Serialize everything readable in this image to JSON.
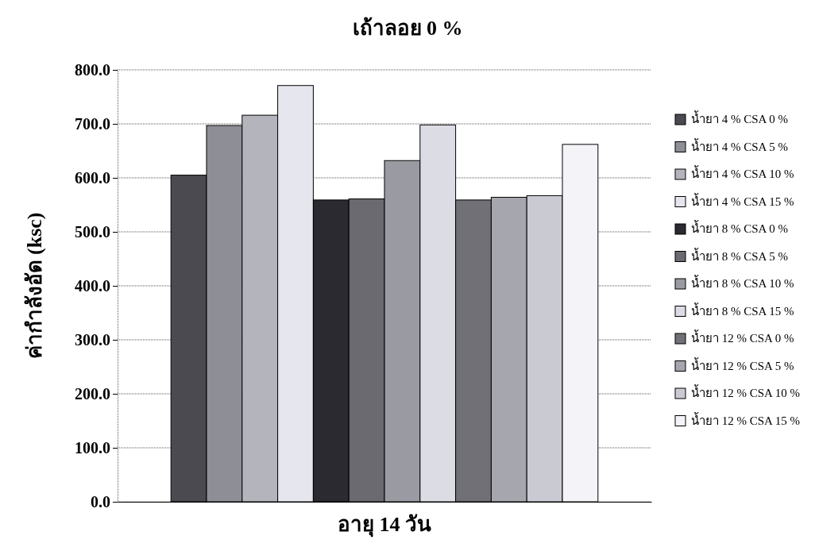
{
  "chart_data": {
    "type": "bar",
    "title": "เถ้าลอย 0 %",
    "ylabel": "ค่ากำลังอัด (ksc)",
    "categories": [
      "อายุ 14 วัน"
    ],
    "ylim": [
      0,
      800
    ],
    "yticks": [
      {
        "value": 0,
        "label": "0.0"
      },
      {
        "value": 100,
        "label": "100.0"
      },
      {
        "value": 200,
        "label": "200.0"
      },
      {
        "value": 300,
        "label": "300.0"
      },
      {
        "value": 400,
        "label": "400.0"
      },
      {
        "value": 500,
        "label": "500.0"
      },
      {
        "value": 600,
        "label": "600.0"
      },
      {
        "value": 700,
        "label": "700.0"
      },
      {
        "value": 800,
        "label": "800.0"
      }
    ],
    "grid": "y",
    "legend": "right",
    "series": [
      {
        "name": "น้ำยา 4 % CSA 0 %",
        "color": "#4a4a50",
        "values": [
          605
        ]
      },
      {
        "name": "น้ำยา 4 % CSA 5 %",
        "color": "#8e8e96",
        "values": [
          697
        ]
      },
      {
        "name": "น้ำยา 4 % CSA 10 %",
        "color": "#b4b4bc",
        "values": [
          716
        ]
      },
      {
        "name": "น้ำยา 4 % CSA 15 %",
        "color": "#e6e6ee",
        "values": [
          771
        ]
      },
      {
        "name": "น้ำยา 8 % CSA 0 %",
        "color": "#2a2a30",
        "values": [
          559
        ]
      },
      {
        "name": "น้ำยา 8 % CSA 5 %",
        "color": "#6a6a70",
        "values": [
          561
        ]
      },
      {
        "name": "น้ำยา 8 % CSA 10 %",
        "color": "#9a9aa2",
        "values": [
          632
        ]
      },
      {
        "name": "น้ำยา 8 % CSA 15 %",
        "color": "#dcdce4",
        "values": [
          698
        ]
      },
      {
        "name": "น้ำยา 12 % CSA 0 %",
        "color": "#707076",
        "values": [
          559
        ]
      },
      {
        "name": "น้ำยา 12 % CSA 5 %",
        "color": "#a6a6ae",
        "values": [
          564
        ]
      },
      {
        "name": "น้ำยา 12 % CSA 10 %",
        "color": "#cacad2",
        "values": [
          567
        ]
      },
      {
        "name": "น้ำยา 12 % CSA 15 %",
        "color": "#f4f4f8",
        "values": [
          662
        ]
      }
    ]
  }
}
